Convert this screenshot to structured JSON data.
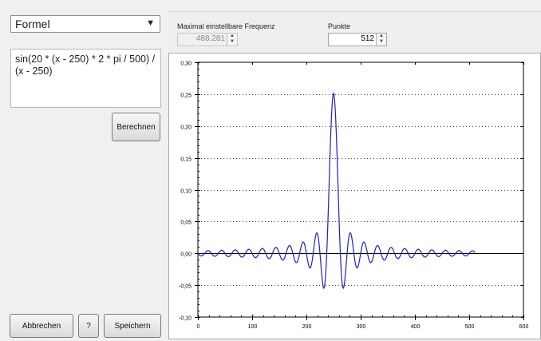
{
  "mode_select": {
    "value": "Formel"
  },
  "formula": {
    "text": "sin(20 * (x - 250) * 2 * pi / 500) / (x - 250)"
  },
  "buttons": {
    "calculate": "Berechnen",
    "cancel": "Abbrechen",
    "help": "?",
    "save": "Speichern"
  },
  "max_frequency": {
    "label": "Maximal einstellbare Frequenz",
    "value": "488.281"
  },
  "points": {
    "label": "Punkte",
    "value": "512"
  },
  "icons": [
    "chevron-down-icon",
    "spin-up-icon",
    "spin-down-icon"
  ],
  "colors": {
    "line": "#1f1fc8",
    "zero_line": "#000000",
    "grid": "#404040"
  },
  "chart_data": {
    "type": "line",
    "title": "",
    "xlabel": "",
    "ylabel": "",
    "xlim": [
      0,
      600
    ],
    "ylim": [
      -0.1,
      0.3
    ],
    "x_ticks": [
      "0",
      "100",
      "200",
      "300",
      "400",
      "500",
      "600"
    ],
    "y_ticks": [
      "-0,10",
      "-0,05",
      "0,00",
      "0,05",
      "0,10",
      "0,15",
      "0,20",
      "0,25",
      "0,30"
    ],
    "grid": "dotted horizontal",
    "series": [
      {
        "formula": "sin(20 * (x - 250) * 2 * pi / 500) / (x - 250)",
        "x_range": [
          0,
          511
        ],
        "peak": 0.2513
      }
    ]
  }
}
